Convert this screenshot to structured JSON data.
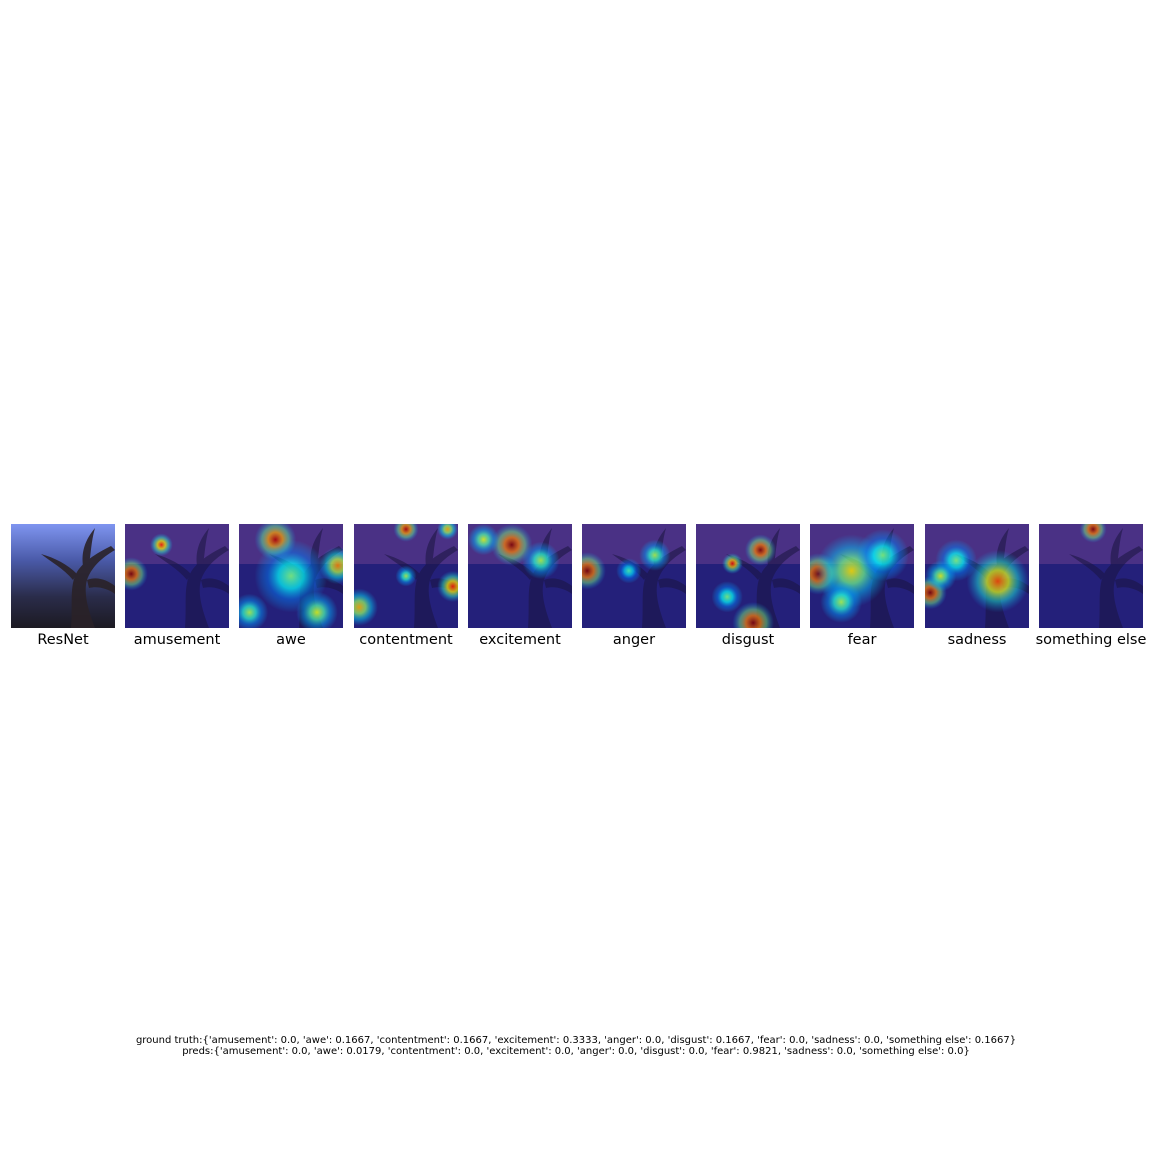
{
  "panels": [
    {
      "label": "ResNet",
      "kind": "original"
    },
    {
      "label": "amusement",
      "kind": "heatmap",
      "hotspots": [
        {
          "cx": 0.06,
          "cy": 0.48,
          "r": 0.16,
          "level": 1.0
        },
        {
          "cx": 0.35,
          "cy": 0.2,
          "r": 0.11,
          "level": 0.85
        }
      ]
    },
    {
      "label": "awe",
      "kind": "heatmap",
      "hotspots": [
        {
          "cx": 0.35,
          "cy": 0.15,
          "r": 0.2,
          "level": 0.95
        },
        {
          "cx": 0.95,
          "cy": 0.4,
          "r": 0.18,
          "level": 0.75
        },
        {
          "cx": 0.5,
          "cy": 0.5,
          "r": 0.35,
          "level": 0.5
        },
        {
          "cx": 0.75,
          "cy": 0.85,
          "r": 0.2,
          "level": 0.6
        },
        {
          "cx": 0.1,
          "cy": 0.85,
          "r": 0.18,
          "level": 0.55
        }
      ]
    },
    {
      "label": "contentment",
      "kind": "heatmap",
      "hotspots": [
        {
          "cx": 0.5,
          "cy": 0.05,
          "r": 0.12,
          "level": 0.95
        },
        {
          "cx": 0.95,
          "cy": 0.6,
          "r": 0.15,
          "level": 0.85
        },
        {
          "cx": 0.05,
          "cy": 0.8,
          "r": 0.18,
          "level": 0.7
        },
        {
          "cx": 0.5,
          "cy": 0.5,
          "r": 0.1,
          "level": 0.55
        },
        {
          "cx": 0.9,
          "cy": 0.05,
          "r": 0.1,
          "level": 0.7
        }
      ]
    },
    {
      "label": "excitement",
      "kind": "heatmap",
      "hotspots": [
        {
          "cx": 0.42,
          "cy": 0.2,
          "r": 0.2,
          "level": 1.0
        },
        {
          "cx": 0.7,
          "cy": 0.35,
          "r": 0.18,
          "level": 0.55
        },
        {
          "cx": 0.15,
          "cy": 0.15,
          "r": 0.15,
          "level": 0.6
        }
      ]
    },
    {
      "label": "anger",
      "kind": "heatmap",
      "hotspots": [
        {
          "cx": 0.05,
          "cy": 0.45,
          "r": 0.18,
          "level": 1.0
        },
        {
          "cx": 0.7,
          "cy": 0.3,
          "r": 0.15,
          "level": 0.55
        },
        {
          "cx": 0.45,
          "cy": 0.45,
          "r": 0.12,
          "level": 0.45
        }
      ]
    },
    {
      "label": "disgust",
      "kind": "heatmap",
      "hotspots": [
        {
          "cx": 0.62,
          "cy": 0.25,
          "r": 0.15,
          "level": 1.0
        },
        {
          "cx": 0.35,
          "cy": 0.38,
          "r": 0.1,
          "level": 0.9
        },
        {
          "cx": 0.55,
          "cy": 0.95,
          "r": 0.2,
          "level": 1.0
        },
        {
          "cx": 0.3,
          "cy": 0.7,
          "r": 0.15,
          "level": 0.5
        }
      ]
    },
    {
      "label": "fear",
      "kind": "heatmap",
      "hotspots": [
        {
          "cx": 0.08,
          "cy": 0.48,
          "r": 0.2,
          "level": 1.0
        },
        {
          "cx": 0.4,
          "cy": 0.45,
          "r": 0.35,
          "level": 0.65
        },
        {
          "cx": 0.7,
          "cy": 0.3,
          "r": 0.25,
          "level": 0.5
        },
        {
          "cx": 0.3,
          "cy": 0.75,
          "r": 0.2,
          "level": 0.55
        }
      ]
    },
    {
      "label": "sadness",
      "kind": "heatmap",
      "hotspots": [
        {
          "cx": 0.05,
          "cy": 0.66,
          "r": 0.16,
          "level": 1.0
        },
        {
          "cx": 0.7,
          "cy": 0.55,
          "r": 0.3,
          "level": 0.8
        },
        {
          "cx": 0.3,
          "cy": 0.35,
          "r": 0.2,
          "level": 0.5
        },
        {
          "cx": 0.15,
          "cy": 0.5,
          "r": 0.15,
          "level": 0.6
        }
      ]
    },
    {
      "label": "something else",
      "kind": "heatmap",
      "hotspots": [
        {
          "cx": 0.52,
          "cy": 0.05,
          "r": 0.13,
          "level": 1.0
        }
      ]
    }
  ],
  "caption": {
    "ground_truth": "ground truth:{'amusement': 0.0, 'awe': 0.1667, 'contentment': 0.1667, 'excitement': 0.3333, 'anger': 0.0, 'disgust': 0.1667, 'fear': 0.0, 'sadness': 0.0, 'something else': 0.1667}",
    "preds": "preds:{'amusement': 0.0, 'awe': 0.0179, 'contentment': 0.0, 'excitement': 0.0, 'anger': 0.0, 'disgust': 0.0, 'fear': 0.9821, 'sadness': 0.0, 'something else': 0.0}"
  }
}
